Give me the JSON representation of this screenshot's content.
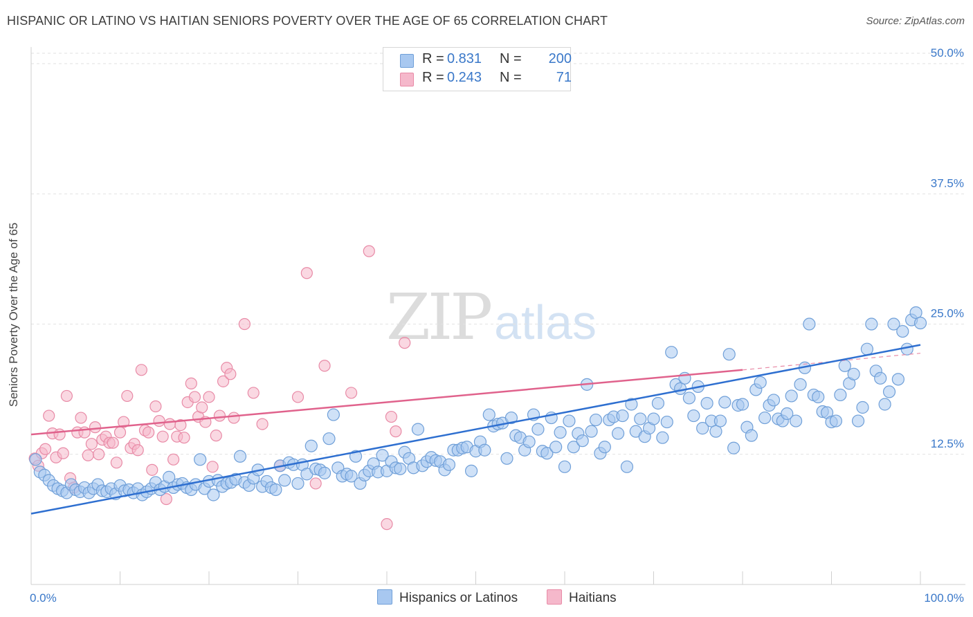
{
  "header": {
    "title": "HISPANIC OR LATINO VS HAITIAN SENIORS POVERTY OVER THE AGE OF 65 CORRELATION CHART",
    "source": "Source: ZipAtlas.com"
  },
  "watermark": {
    "zip": "ZIP",
    "atlas": "atlas"
  },
  "legend": {
    "rows": [
      {
        "r_label": "R =",
        "r_value": "0.831",
        "n_label": "N =",
        "n_value": "200",
        "color": "#a8c8f0"
      },
      {
        "r_label": "R =",
        "r_value": "0.243",
        "n_label": "N =",
        "n_value": "71",
        "color": "#f5b8cb"
      }
    ],
    "bottom": [
      {
        "label": "Hispanics or Latinos",
        "color": "#a8c8f0"
      },
      {
        "label": "Haitians",
        "color": "#f5b8cb"
      }
    ]
  },
  "colors": {
    "blue_fill": "#a8c8f0",
    "blue_stroke": "#6f9fd8",
    "blue_line": "#2e6fd0",
    "pink_fill": "#f5b8cb",
    "pink_stroke": "#e88aa6",
    "pink_line": "#e0628c",
    "tick_label": "#3a78c9",
    "grid": "#e2e2e2"
  },
  "chart_data": {
    "type": "scatter",
    "title": "HISPANIC OR LATINO VS HAITIAN SENIORS POVERTY OVER THE AGE OF 65 CORRELATION CHART",
    "xlabel": "",
    "ylabel": "Seniors Poverty Over the Age of 65",
    "xlim": [
      0,
      100
    ],
    "ylim": [
      0,
      51
    ],
    "x_tick_labels": [
      "0.0%",
      "100.0%"
    ],
    "y_ticks": [
      12.5,
      25.0,
      37.5,
      50.0
    ],
    "y_tick_labels": [
      "12.5%",
      "25.0%",
      "37.5%",
      "50.0%"
    ],
    "grid": true,
    "legend_position": "top-center",
    "series": [
      {
        "name": "Hispanics or Latinos",
        "r": 0.831,
        "n": 200,
        "trend": {
          "x": [
            0,
            100
          ],
          "y": [
            6.8,
            23.0
          ]
        },
        "points": [
          [
            0.5,
            12.0
          ],
          [
            1.0,
            10.8
          ],
          [
            1.5,
            10.5
          ],
          [
            2.0,
            10.0
          ],
          [
            2.5,
            9.5
          ],
          [
            3.0,
            9.2
          ],
          [
            3.5,
            9.0
          ],
          [
            4.0,
            8.8
          ],
          [
            4.5,
            9.6
          ],
          [
            5.0,
            9.1
          ],
          [
            5.5,
            8.9
          ],
          [
            6.0,
            9.3
          ],
          [
            6.5,
            8.8
          ],
          [
            7.0,
            9.2
          ],
          [
            7.5,
            9.6
          ],
          [
            8.0,
            9.0
          ],
          [
            8.5,
            8.9
          ],
          [
            9.0,
            9.2
          ],
          [
            9.5,
            8.7
          ],
          [
            10.0,
            9.5
          ],
          [
            10.5,
            9.0
          ],
          [
            11.0,
            9.1
          ],
          [
            11.5,
            8.8
          ],
          [
            12.0,
            9.2
          ],
          [
            12.5,
            8.6
          ],
          [
            13.0,
            8.9
          ],
          [
            13.5,
            9.2
          ],
          [
            14.0,
            9.8
          ],
          [
            14.5,
            9.1
          ],
          [
            15.0,
            9.4
          ],
          [
            15.5,
            10.3
          ],
          [
            16.0,
            9.3
          ],
          [
            16.5,
            9.6
          ],
          [
            17.0,
            9.7
          ],
          [
            17.5,
            9.3
          ],
          [
            18.0,
            9.1
          ],
          [
            18.5,
            9.6
          ],
          [
            19.0,
            12.0
          ],
          [
            19.5,
            9.2
          ],
          [
            20.0,
            9.9
          ],
          [
            20.5,
            8.6
          ],
          [
            21.0,
            10.0
          ],
          [
            21.5,
            9.4
          ],
          [
            22.0,
            9.7
          ],
          [
            22.5,
            9.8
          ],
          [
            23.0,
            10.1
          ],
          [
            23.5,
            12.3
          ],
          [
            24.0,
            9.8
          ],
          [
            24.5,
            9.5
          ],
          [
            25.0,
            10.2
          ],
          [
            25.5,
            11.0
          ],
          [
            26.0,
            9.4
          ],
          [
            26.5,
            9.9
          ],
          [
            27.0,
            9.3
          ],
          [
            27.5,
            9.1
          ],
          [
            28.0,
            11.4
          ],
          [
            28.5,
            10.0
          ],
          [
            29.0,
            11.7
          ],
          [
            29.5,
            11.5
          ],
          [
            30.0,
            9.7
          ],
          [
            30.5,
            11.5
          ],
          [
            31.0,
            10.6
          ],
          [
            31.5,
            13.3
          ],
          [
            32.0,
            11.1
          ],
          [
            32.5,
            11.0
          ],
          [
            33.0,
            10.7
          ],
          [
            33.5,
            14.0
          ],
          [
            34.0,
            16.3
          ],
          [
            34.5,
            11.2
          ],
          [
            35.0,
            10.4
          ],
          [
            35.5,
            10.6
          ],
          [
            36.0,
            10.4
          ],
          [
            36.5,
            12.3
          ],
          [
            37.0,
            9.7
          ],
          [
            37.5,
            10.5
          ],
          [
            38.0,
            10.9
          ],
          [
            38.5,
            11.6
          ],
          [
            39.0,
            10.8
          ],
          [
            39.5,
            12.4
          ],
          [
            40.0,
            10.9
          ],
          [
            40.5,
            11.8
          ],
          [
            41.0,
            11.2
          ],
          [
            41.5,
            11.1
          ],
          [
            42.0,
            12.7
          ],
          [
            42.5,
            12.1
          ],
          [
            43.0,
            11.2
          ],
          [
            43.5,
            14.9
          ],
          [
            44.0,
            11.4
          ],
          [
            44.5,
            11.8
          ],
          [
            45.0,
            12.2
          ],
          [
            45.5,
            11.9
          ],
          [
            46.0,
            11.8
          ],
          [
            46.5,
            11.0
          ],
          [
            47.0,
            11.5
          ],
          [
            47.5,
            12.9
          ],
          [
            48.0,
            12.9
          ],
          [
            48.5,
            13.1
          ],
          [
            49.0,
            13.2
          ],
          [
            49.5,
            10.9
          ],
          [
            50.0,
            12.8
          ],
          [
            50.5,
            13.7
          ],
          [
            51.0,
            12.9
          ],
          [
            51.5,
            16.3
          ],
          [
            52.0,
            15.2
          ],
          [
            52.5,
            15.4
          ],
          [
            53.0,
            15.5
          ],
          [
            53.5,
            12.1
          ],
          [
            54.0,
            16.0
          ],
          [
            54.5,
            14.3
          ],
          [
            55.0,
            14.1
          ],
          [
            55.5,
            12.9
          ],
          [
            56.0,
            13.7
          ],
          [
            56.5,
            16.3
          ],
          [
            57.0,
            14.9
          ],
          [
            57.5,
            12.8
          ],
          [
            58.0,
            12.6
          ],
          [
            58.5,
            16.0
          ],
          [
            59.0,
            13.2
          ],
          [
            59.5,
            14.6
          ],
          [
            60.0,
            11.3
          ],
          [
            60.5,
            15.7
          ],
          [
            61.0,
            13.2
          ],
          [
            61.5,
            14.5
          ],
          [
            62.0,
            13.8
          ],
          [
            62.5,
            19.2
          ],
          [
            63.0,
            14.7
          ],
          [
            63.5,
            15.8
          ],
          [
            64.0,
            12.6
          ],
          [
            64.5,
            13.2
          ],
          [
            65.0,
            15.8
          ],
          [
            65.5,
            16.1
          ],
          [
            66.0,
            14.5
          ],
          [
            66.5,
            16.2
          ],
          [
            67.0,
            11.3
          ],
          [
            67.5,
            17.3
          ],
          [
            68.0,
            14.7
          ],
          [
            68.5,
            15.9
          ],
          [
            69.0,
            14.2
          ],
          [
            69.5,
            15.0
          ],
          [
            70.0,
            15.9
          ],
          [
            70.5,
            17.4
          ],
          [
            71.0,
            14.1
          ],
          [
            71.5,
            15.6
          ],
          [
            72.0,
            22.3
          ],
          [
            72.5,
            19.2
          ],
          [
            73.0,
            18.8
          ],
          [
            73.5,
            19.8
          ],
          [
            74.0,
            17.9
          ],
          [
            74.5,
            16.2
          ],
          [
            75.0,
            19.0
          ],
          [
            75.5,
            15.0
          ],
          [
            76.0,
            17.4
          ],
          [
            76.5,
            15.7
          ],
          [
            77.0,
            14.7
          ],
          [
            77.5,
            15.7
          ],
          [
            78.0,
            17.5
          ],
          [
            78.5,
            22.1
          ],
          [
            79.0,
            13.1
          ],
          [
            79.5,
            17.2
          ],
          [
            80.0,
            17.3
          ],
          [
            80.5,
            15.1
          ],
          [
            81.0,
            14.3
          ],
          [
            81.5,
            18.7
          ],
          [
            82.0,
            19.4
          ],
          [
            82.5,
            16.0
          ],
          [
            83.0,
            17.2
          ],
          [
            83.5,
            17.7
          ],
          [
            84.0,
            15.9
          ],
          [
            84.5,
            15.7
          ],
          [
            85.0,
            16.4
          ],
          [
            85.5,
            18.1
          ],
          [
            86.0,
            15.7
          ],
          [
            86.5,
            19.2
          ],
          [
            87.0,
            20.8
          ],
          [
            87.5,
            25.0
          ],
          [
            88.0,
            18.2
          ],
          [
            88.5,
            18.0
          ],
          [
            89.0,
            16.6
          ],
          [
            89.5,
            16.5
          ],
          [
            90.0,
            15.6
          ],
          [
            90.5,
            15.7
          ],
          [
            91.0,
            18.2
          ],
          [
            91.5,
            21.0
          ],
          [
            92.0,
            19.3
          ],
          [
            92.5,
            20.2
          ],
          [
            93.0,
            15.7
          ],
          [
            93.5,
            17.0
          ],
          [
            94.0,
            22.6
          ],
          [
            94.5,
            25.0
          ],
          [
            95.0,
            20.5
          ],
          [
            95.5,
            19.8
          ],
          [
            96.0,
            17.3
          ],
          [
            96.5,
            18.5
          ],
          [
            97.0,
            25.0
          ],
          [
            97.5,
            19.7
          ],
          [
            98.0,
            24.3
          ],
          [
            98.5,
            22.6
          ],
          [
            99.0,
            25.4
          ],
          [
            99.5,
            26.1
          ],
          [
            100.0,
            25.1
          ]
        ]
      },
      {
        "name": "Haitians",
        "r": 0.243,
        "n": 71,
        "trend": {
          "x": [
            0,
            80
          ],
          "y": [
            14.4,
            20.6
          ]
        },
        "trend_dashed": {
          "x": [
            80,
            100
          ],
          "y": [
            20.6,
            22.2
          ]
        },
        "points": [
          [
            0.4,
            12.1
          ],
          [
            0.8,
            11.4
          ],
          [
            1.2,
            12.6
          ],
          [
            1.6,
            13.0
          ],
          [
            2.0,
            16.2
          ],
          [
            2.4,
            14.5
          ],
          [
            2.8,
            12.2
          ],
          [
            3.2,
            14.4
          ],
          [
            3.6,
            12.6
          ],
          [
            4.0,
            18.1
          ],
          [
            4.4,
            10.2
          ],
          [
            4.8,
            9.3
          ],
          [
            5.2,
            14.6
          ],
          [
            5.6,
            16.0
          ],
          [
            6.0,
            14.6
          ],
          [
            6.4,
            12.4
          ],
          [
            6.8,
            13.5
          ],
          [
            7.2,
            15.1
          ],
          [
            7.6,
            12.5
          ],
          [
            8.0,
            13.9
          ],
          [
            8.4,
            14.2
          ],
          [
            8.8,
            13.6
          ],
          [
            9.2,
            13.6
          ],
          [
            9.6,
            11.7
          ],
          [
            10.0,
            14.6
          ],
          [
            10.4,
            15.6
          ],
          [
            10.8,
            18.1
          ],
          [
            11.2,
            13.1
          ],
          [
            11.6,
            13.5
          ],
          [
            12.0,
            12.9
          ],
          [
            12.4,
            20.6
          ],
          [
            12.8,
            14.8
          ],
          [
            13.2,
            14.6
          ],
          [
            13.6,
            11.0
          ],
          [
            14.0,
            17.1
          ],
          [
            14.4,
            15.7
          ],
          [
            14.8,
            14.2
          ],
          [
            15.2,
            8.2
          ],
          [
            15.6,
            15.4
          ],
          [
            16.0,
            12.0
          ],
          [
            16.4,
            14.2
          ],
          [
            16.8,
            15.3
          ],
          [
            17.2,
            14.1
          ],
          [
            17.6,
            17.5
          ],
          [
            18.0,
            19.3
          ],
          [
            18.4,
            18.0
          ],
          [
            18.8,
            16.1
          ],
          [
            19.2,
            17.0
          ],
          [
            19.6,
            15.6
          ],
          [
            20.0,
            18.0
          ],
          [
            20.4,
            11.3
          ],
          [
            20.8,
            14.3
          ],
          [
            21.2,
            16.2
          ],
          [
            21.6,
            19.5
          ],
          [
            22.0,
            20.8
          ],
          [
            22.4,
            20.2
          ],
          [
            22.8,
            16.0
          ],
          [
            24.0,
            25.0
          ],
          [
            25.0,
            18.4
          ],
          [
            26.0,
            15.4
          ],
          [
            28.0,
            11.4
          ],
          [
            30.0,
            18.0
          ],
          [
            31.0,
            29.9
          ],
          [
            32.0,
            9.7
          ],
          [
            33.0,
            21.0
          ],
          [
            36.0,
            18.4
          ],
          [
            38.0,
            32.0
          ],
          [
            40.0,
            5.8
          ],
          [
            40.5,
            16.1
          ],
          [
            41.0,
            14.7
          ],
          [
            42.0,
            23.2
          ]
        ]
      }
    ]
  }
}
